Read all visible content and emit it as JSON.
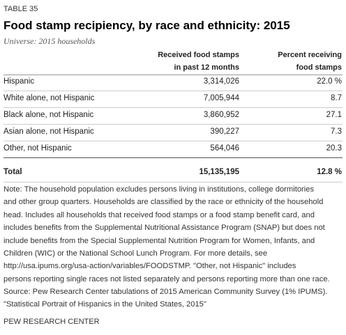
{
  "header": {
    "label": "TABLE 35",
    "title": "Food stamp recipiency, by race and ethnicity: 2015",
    "universe": "Universe: 2015 households"
  },
  "table": {
    "columns": [
      {
        "lines": [
          "Received food stamps",
          "in past 12 months"
        ]
      },
      {
        "lines": [
          "Percent receiving",
          "food stamps"
        ]
      }
    ],
    "rows": [
      [
        "Hispanic",
        "3,314,026",
        "22.0 %"
      ],
      [
        "White alone, not Hispanic",
        "7,005,944",
        "8.7"
      ],
      [
        "Black alone, not Hispanic",
        "3,860,952",
        "27.1"
      ],
      [
        "Asian alone, not Hispanic",
        "390,227",
        "7.3"
      ],
      [
        "Other, not Hispanic",
        "564,046",
        "20.3"
      ]
    ],
    "total": [
      "Total",
      "15,135,195",
      "12.8 %"
    ]
  },
  "note": [
    "Note: The household population excludes persons living in institutions, college dormitories",
    "and other group quarters. Households are classified by the race or ethnicity of the household",
    "head. Includes all households that received food stamps or a food stamp benefit card, and",
    "includes benefits from the Supplemental Nutritional Assistance Program (SNAP) but does not",
    "include benefits from the Special Supplemental Nutrition Program for Women, Infants, and",
    "Children (WIC) or the National School Lunch Program. For more details, see",
    "http://usa.ipums.org/usa-action/variables/FOODSTMP. \"Other, not Hispanic\" includes",
    "persons reporting single races not listed separately and persons reporting more than one race."
  ],
  "source": [
    "Source: Pew Research Center tabulations of 2015 American Community Survey (1% IPUMS).",
    "\"Statistical Portrait of Hispanics in the United States, 2015\""
  ],
  "footer": "PEW RESEARCH CENTER"
}
